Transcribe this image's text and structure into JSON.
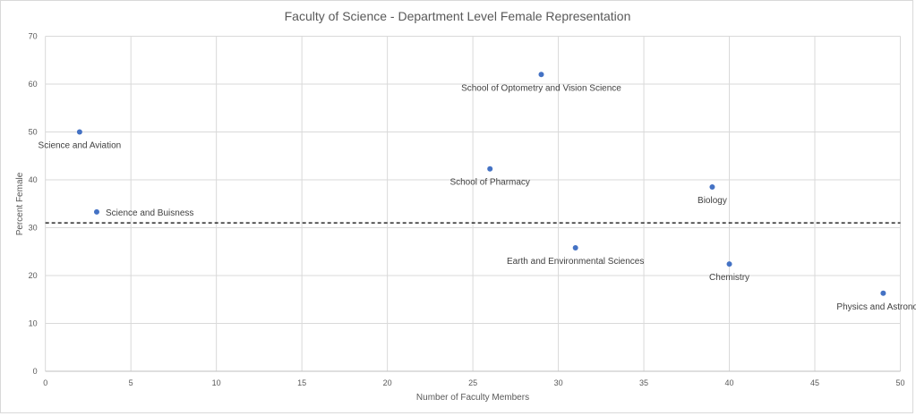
{
  "chart_data": {
    "type": "scatter",
    "title": "Faculty of Science - Department Level Female Representation",
    "xlabel": "Number of Faculty Members",
    "ylabel": "Percent Female",
    "xlim": [
      0,
      50
    ],
    "ylim": [
      0,
      70
    ],
    "xticks": [
      0,
      5,
      10,
      15,
      20,
      25,
      30,
      35,
      40,
      45,
      50
    ],
    "yticks": [
      0,
      10,
      20,
      30,
      40,
      50,
      60,
      70
    ],
    "grid": true,
    "marker_color": "#4472c4",
    "reference_line": {
      "y": 31,
      "style": "dashed",
      "color": "#000000"
    },
    "points": [
      {
        "label": "Science and Aviation",
        "x": 2,
        "y": 50,
        "label_pos": "below"
      },
      {
        "label": "Science and Buisness",
        "x": 3,
        "y": 33.3,
        "label_pos": "right"
      },
      {
        "label": "School of Optometry and Vision Science",
        "x": 29,
        "y": 62,
        "label_pos": "below"
      },
      {
        "label": "School of Pharmacy",
        "x": 26,
        "y": 42.3,
        "label_pos": "below"
      },
      {
        "label": "Biology",
        "x": 39,
        "y": 38.5,
        "label_pos": "below"
      },
      {
        "label": "Earth and Environmental Sciences",
        "x": 31,
        "y": 25.8,
        "label_pos": "below"
      },
      {
        "label": "Chemistry",
        "x": 40,
        "y": 22.4,
        "label_pos": "below"
      },
      {
        "label": "Physics and Astronomy",
        "x": 49,
        "y": 16.3,
        "label_pos": "below"
      }
    ]
  }
}
